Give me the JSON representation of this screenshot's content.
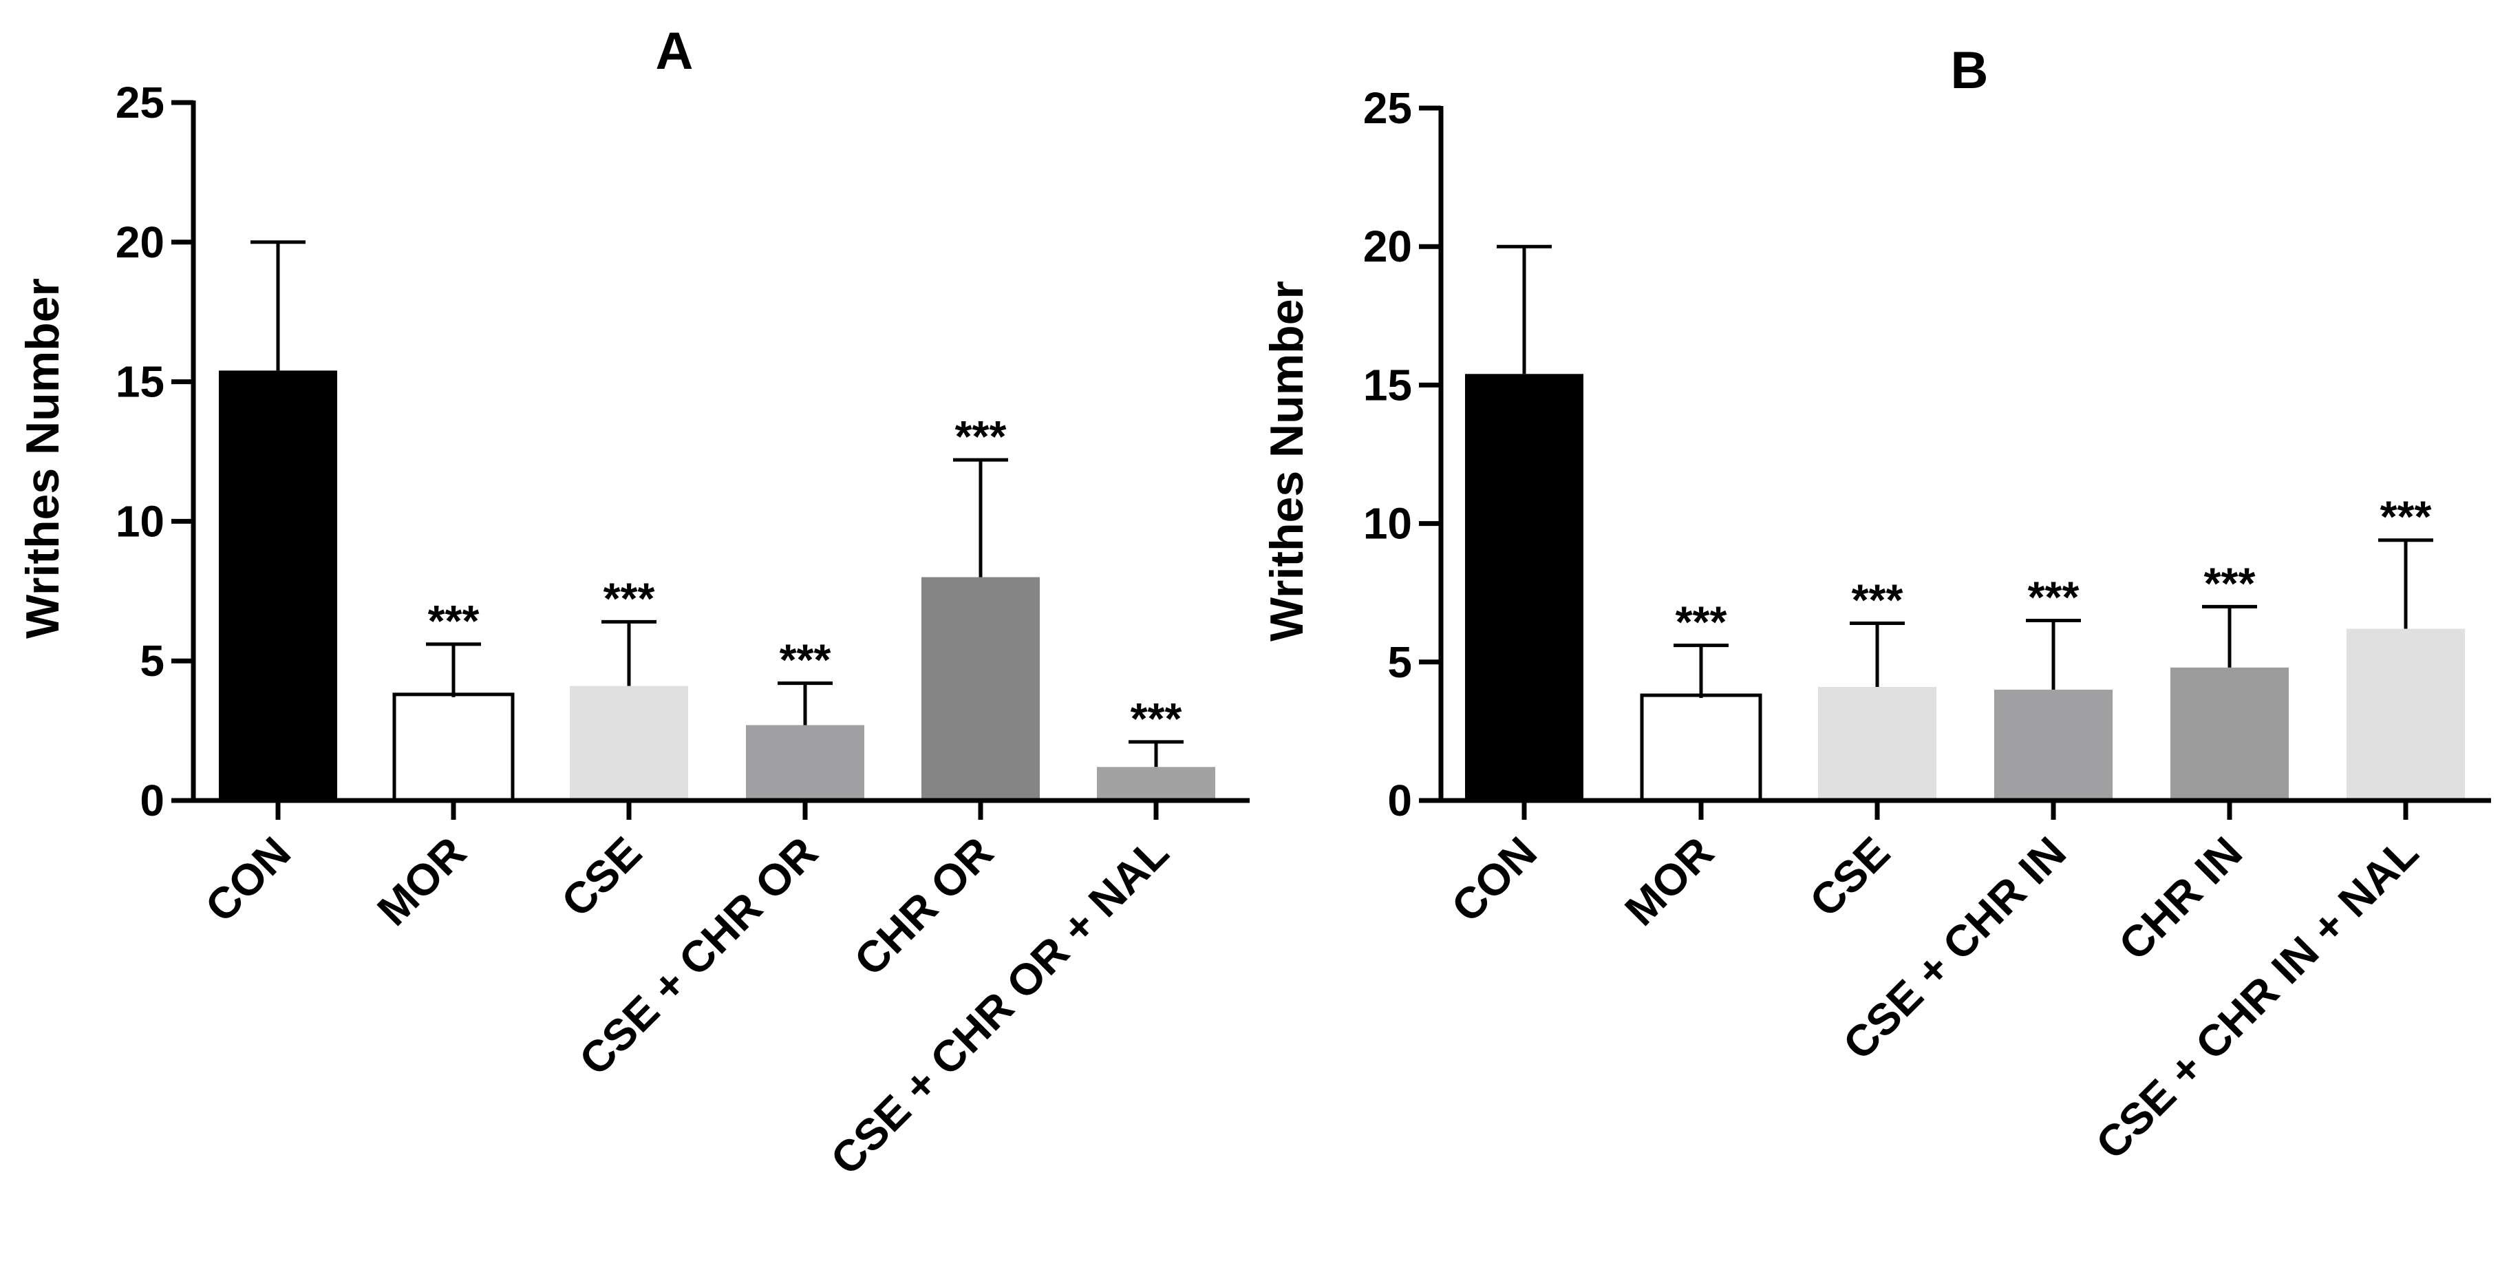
{
  "chart_data": [
    {
      "type": "bar",
      "title": "A",
      "ylabel": "Writhes Number",
      "xlabel": "",
      "ylim": [
        0,
        25
      ],
      "yticks": [
        "0",
        "5",
        "10",
        "15",
        "20",
        "25"
      ],
      "grid": false,
      "categories": [
        "CON",
        "MOR",
        "CSE",
        "CSE + CHR OR",
        "CHR OR",
        "CSE + CHR OR + NAL"
      ],
      "values": [
        15.4,
        3.8,
        4.1,
        2.7,
        8.0,
        1.2
      ],
      "errors": [
        4.6,
        1.8,
        2.3,
        1.5,
        4.2,
        0.9
      ],
      "significance": [
        "",
        "***",
        "***",
        "***",
        "***",
        "***"
      ],
      "colors": [
        "#000000",
        "#ffffff",
        "#e0e0e0",
        "#a0a0a2",
        "#858585",
        "#a2a2a2"
      ]
    },
    {
      "type": "bar",
      "title": "B",
      "ylabel": "Writhes Number",
      "xlabel": "",
      "ylim": [
        0,
        25
      ],
      "yticks": [
        "0",
        "5",
        "10",
        "15",
        "20",
        "25"
      ],
      "grid": false,
      "categories": [
        "CON",
        "MOR",
        "CSE",
        "CSE + CHR IN",
        "CHR IN",
        "CSE + CHR IN + NAL"
      ],
      "values": [
        15.4,
        3.8,
        4.1,
        4.0,
        4.8,
        6.2
      ],
      "errors": [
        4.6,
        1.8,
        2.3,
        2.5,
        2.2,
        3.2
      ],
      "significance": [
        "",
        "***",
        "***",
        "***",
        "***",
        "***"
      ],
      "colors": [
        "#000000",
        "#ffffff",
        "#e0e0e0",
        "#a0a0a2",
        "#9c9c9c",
        "#e0e0e0"
      ]
    }
  ]
}
